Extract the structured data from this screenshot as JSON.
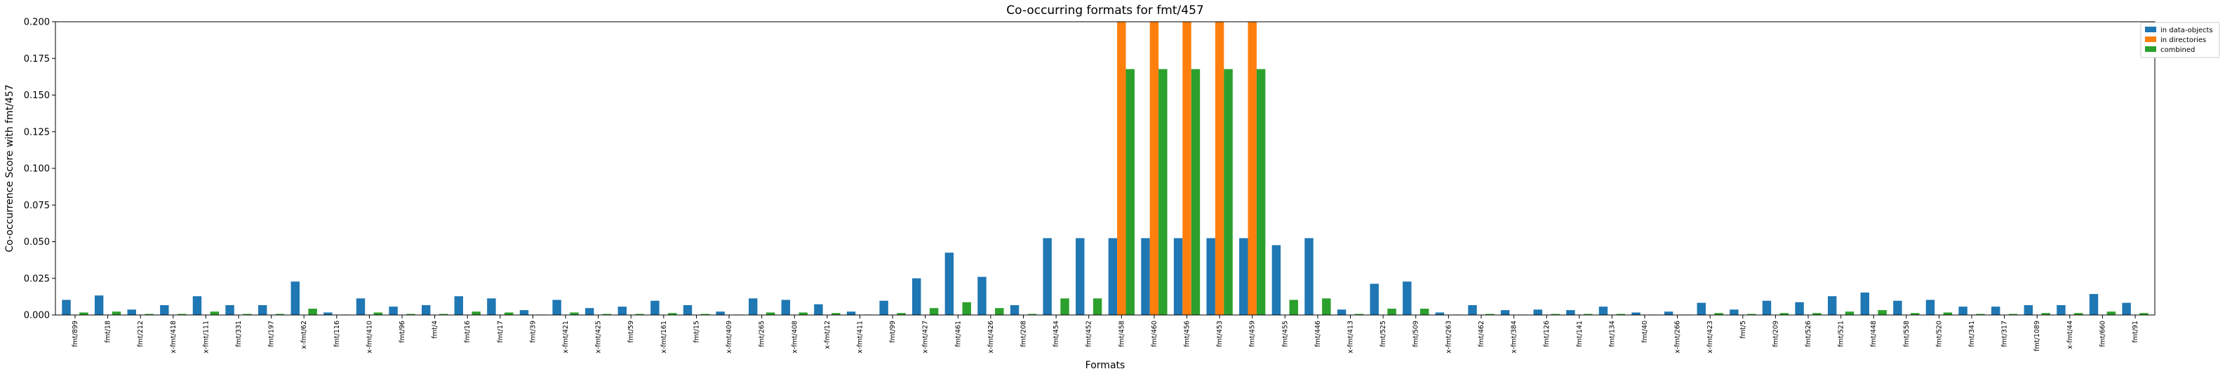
{
  "chart_data": {
    "type": "bar",
    "title": "Co-occurring formats for fmt/457",
    "xlabel": "Formats",
    "ylabel": "Co-occurrence Score with fmt/457",
    "ylim": [
      0,
      0.2
    ],
    "yticks": [
      "0.000",
      "0.025",
      "0.050",
      "0.075",
      "0.100",
      "0.125",
      "0.150",
      "0.175",
      "0.200"
    ],
    "grid": false,
    "legend_position": "outside-top-right",
    "categories": [
      "fmt/899",
      "fmt/18",
      "fmt/212",
      "x-fmt/418",
      "x-fmt/111",
      "fmt/331",
      "fmt/197",
      "x-fmt/62",
      "fmt/116",
      "x-fmt/410",
      "fmt/96",
      "fmt/4",
      "fmt/16",
      "fmt/17",
      "fmt/39",
      "x-fmt/421",
      "x-fmt/425",
      "fmt/59",
      "x-fmt/161",
      "fmt/15",
      "x-fmt/409",
      "fmt/265",
      "x-fmt/408",
      "x-fmt/12",
      "x-fmt/411",
      "fmt/99",
      "x-fmt/427",
      "fmt/461",
      "x-fmt/426",
      "fmt/208",
      "fmt/454",
      "fmt/452",
      "fmt/458",
      "fmt/460",
      "fmt/456",
      "fmt/453",
      "fmt/459",
      "fmt/455",
      "fmt/446",
      "x-fmt/413",
      "fmt/525",
      "fmt/509",
      "x-fmt/263",
      "fmt/462",
      "x-fmt/384",
      "fmt/126",
      "fmt/141",
      "fmt/134",
      "fmt/40",
      "x-fmt/266",
      "x-fmt/423",
      "fmt/5",
      "fmt/209",
      "fmt/526",
      "fmt/521",
      "fmt/448",
      "fmt/558",
      "fmt/520",
      "fmt/341",
      "fmt/317",
      "fmt/1089",
      "x-fmt/44",
      "fmt/660",
      "fmt/91"
    ],
    "series": [
      {
        "name": "in data-objects",
        "color": "#1f77b4",
        "values": [
          0.0103,
          0.0133,
          0.0037,
          0.0067,
          0.0128,
          0.0067,
          0.0067,
          0.0228,
          0.0017,
          0.0113,
          0.0057,
          0.0067,
          0.0128,
          0.0113,
          0.0033,
          0.0103,
          0.0047,
          0.0057,
          0.0097,
          0.0067,
          0.0023,
          0.0113,
          0.0103,
          0.0073,
          0.0023,
          0.0097,
          0.025,
          0.0425,
          0.026,
          0.0067,
          0.0524,
          0.0524,
          0.0524,
          0.0524,
          0.0524,
          0.0524,
          0.0524,
          0.0476,
          0.0524,
          0.0037,
          0.0213,
          0.0228,
          0.0017,
          0.0067,
          0.0033,
          0.0037,
          0.0033,
          0.0057,
          0.0017,
          0.0023,
          0.0083,
          0.0037,
          0.0097,
          0.0087,
          0.0128,
          0.0153,
          0.0097,
          0.0103,
          0.0057,
          0.0057,
          0.0067,
          0.0067,
          0.0143,
          0.0083
        ]
      },
      {
        "name": "in directories",
        "color": "#ff7f0e",
        "values": [
          0,
          0,
          0,
          0,
          0,
          0,
          0,
          0,
          0,
          0,
          0,
          0,
          0,
          0,
          0,
          0,
          0,
          0,
          0,
          0,
          0,
          0,
          0,
          0,
          0,
          0,
          0,
          0,
          0,
          0,
          0,
          0,
          0.2,
          0.2,
          0.2,
          0.2,
          0.2,
          0,
          0,
          0,
          0,
          0,
          0,
          0,
          0,
          0,
          0,
          0,
          0,
          0,
          0,
          0,
          0,
          0,
          0,
          0,
          0,
          0,
          0,
          0,
          0,
          0,
          0,
          0
        ]
      },
      {
        "name": "combined",
        "color": "#2ca02c",
        "values": [
          0.0017,
          0.0023,
          0.0007,
          0.0007,
          0.0023,
          0.0007,
          0.0007,
          0.0043,
          0.0003,
          0.0017,
          0.0007,
          0.0007,
          0.0023,
          0.0017,
          0.0003,
          0.0017,
          0.0007,
          0.0007,
          0.0013,
          0.0007,
          0.0003,
          0.0017,
          0.0017,
          0.0013,
          0.0003,
          0.0013,
          0.0047,
          0.0087,
          0.0047,
          0.0007,
          0.0113,
          0.0113,
          0.1677,
          0.1677,
          0.1677,
          0.1677,
          0.1677,
          0.0103,
          0.0113,
          0.0007,
          0.0043,
          0.0043,
          0.0003,
          0.0007,
          0.0003,
          0.0007,
          0.0007,
          0.0007,
          0.0003,
          0.0003,
          0.0013,
          0.0007,
          0.0013,
          0.0013,
          0.0023,
          0.0033,
          0.0013,
          0.0017,
          0.0007,
          0.0007,
          0.0013,
          0.0013,
          0.0023,
          0.0013
        ]
      }
    ]
  }
}
